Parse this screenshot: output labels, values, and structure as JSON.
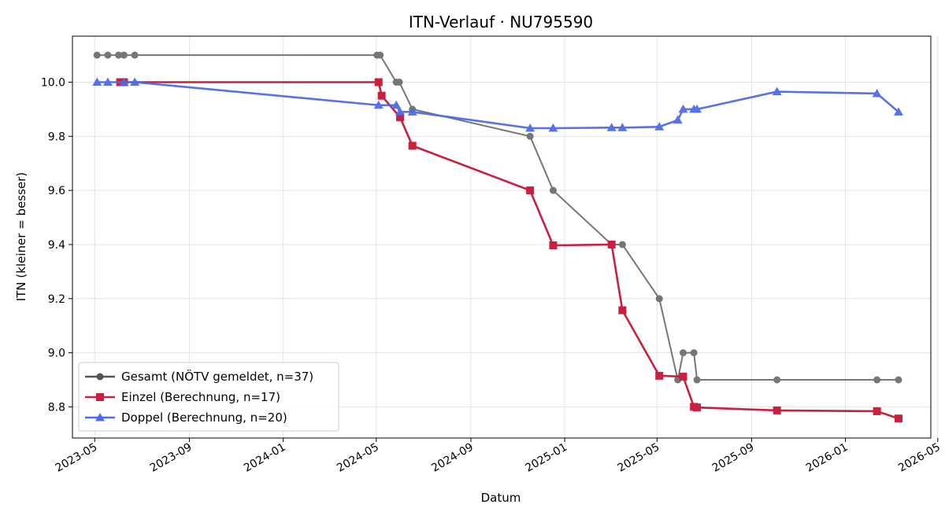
{
  "chart_data": {
    "type": "line",
    "title": "ITN-Verlauf · NU795590",
    "xlabel": "Datum",
    "ylabel": "ITN  (kleiner = besser)",
    "x_type": "date",
    "xlim": [
      "2023-04-02",
      "2026-04-22"
    ],
    "ylim": [
      8.685,
      10.17
    ],
    "xticks": [
      {
        "date": "2023-05-01",
        "label": "2023-05"
      },
      {
        "date": "2023-09-01",
        "label": "2023-09"
      },
      {
        "date": "2024-01-01",
        "label": "2024-01"
      },
      {
        "date": "2024-05-01",
        "label": "2024-05"
      },
      {
        "date": "2024-09-01",
        "label": "2024-09"
      },
      {
        "date": "2025-01-01",
        "label": "2025-01"
      },
      {
        "date": "2025-05-01",
        "label": "2025-05"
      },
      {
        "date": "2025-09-01",
        "label": "2025-09"
      },
      {
        "date": "2026-01-01",
        "label": "2026-01"
      },
      {
        "date": "2026-05-01",
        "label": "2026-05"
      }
    ],
    "yticks": [
      8.8,
      9.0,
      9.2,
      9.4,
      9.6,
      9.8,
      10.0
    ],
    "ytick_labels": [
      "8.8",
      "9.0",
      "9.2",
      "9.4",
      "9.6",
      "9.8",
      "10.0"
    ],
    "grid": true,
    "legend_position": "lower-left",
    "series": [
      {
        "name": "Gesamt (NÖTV gemeldet, n=37)",
        "color": "#555555",
        "marker": "circle",
        "points": [
          {
            "x": "2023-05-04",
            "y": 10.1
          },
          {
            "x": "2023-05-18",
            "y": 10.1
          },
          {
            "x": "2023-06-01",
            "y": 10.1
          },
          {
            "x": "2023-06-08",
            "y": 10.1
          },
          {
            "x": "2023-06-22",
            "y": 10.1
          },
          {
            "x": "2024-05-02",
            "y": 10.1
          },
          {
            "x": "2024-05-06",
            "y": 10.1
          },
          {
            "x": "2024-05-27",
            "y": 10.0
          },
          {
            "x": "2024-05-31",
            "y": 10.0
          },
          {
            "x": "2024-06-17",
            "y": 9.9
          },
          {
            "x": "2024-11-17",
            "y": 9.8
          },
          {
            "x": "2024-12-17",
            "y": 9.6
          },
          {
            "x": "2025-03-03",
            "y": 9.4
          },
          {
            "x": "2025-03-17",
            "y": 9.4
          },
          {
            "x": "2025-05-04",
            "y": 9.2
          },
          {
            "x": "2025-05-28",
            "y": 8.9
          },
          {
            "x": "2025-06-04",
            "y": 9.0
          },
          {
            "x": "2025-06-18",
            "y": 9.0
          },
          {
            "x": "2025-06-22",
            "y": 8.9
          },
          {
            "x": "2025-10-04",
            "y": 8.9
          },
          {
            "x": "2026-02-11",
            "y": 8.9
          },
          {
            "x": "2026-03-11",
            "y": 8.9
          }
        ]
      },
      {
        "name": "Einzel (Berechnung, n=17)",
        "color": "#c8203e",
        "marker": "square",
        "points": [
          {
            "x": "2023-06-03",
            "y": 10.0
          },
          {
            "x": "2023-06-08",
            "y": 10.0
          },
          {
            "x": "2024-05-04",
            "y": 10.0
          },
          {
            "x": "2024-05-08",
            "y": 9.95
          },
          {
            "x": "2024-06-01",
            "y": 9.87
          },
          {
            "x": "2024-06-17",
            "y": 9.765
          },
          {
            "x": "2024-11-17",
            "y": 9.6
          },
          {
            "x": "2024-12-17",
            "y": 9.397
          },
          {
            "x": "2025-03-03",
            "y": 9.4
          },
          {
            "x": "2025-03-17",
            "y": 9.157
          },
          {
            "x": "2025-05-04",
            "y": 8.915
          },
          {
            "x": "2025-06-04",
            "y": 8.912
          },
          {
            "x": "2025-06-18",
            "y": 8.8
          },
          {
            "x": "2025-06-22",
            "y": 8.798
          },
          {
            "x": "2025-10-04",
            "y": 8.787
          },
          {
            "x": "2026-02-11",
            "y": 8.784
          },
          {
            "x": "2026-03-11",
            "y": 8.757
          }
        ]
      },
      {
        "name": "Doppel (Berechnung, n=20)",
        "color": "#4f6ae6",
        "marker": "triangle",
        "points": [
          {
            "x": "2023-05-04",
            "y": 10.0
          },
          {
            "x": "2023-05-18",
            "y": 10.0
          },
          {
            "x": "2023-06-08",
            "y": 10.0
          },
          {
            "x": "2023-06-22",
            "y": 10.0
          },
          {
            "x": "2024-05-04",
            "y": 9.915
          },
          {
            "x": "2024-05-27",
            "y": 9.915
          },
          {
            "x": "2024-06-01",
            "y": 9.89
          },
          {
            "x": "2024-06-17",
            "y": 9.89
          },
          {
            "x": "2024-11-17",
            "y": 9.83
          },
          {
            "x": "2024-12-17",
            "y": 9.83
          },
          {
            "x": "2025-03-03",
            "y": 9.832
          },
          {
            "x": "2025-03-17",
            "y": 9.832
          },
          {
            "x": "2025-05-04",
            "y": 9.835
          },
          {
            "x": "2025-05-28",
            "y": 9.86
          },
          {
            "x": "2025-06-04",
            "y": 9.9
          },
          {
            "x": "2025-06-18",
            "y": 9.9
          },
          {
            "x": "2025-06-22",
            "y": 9.9
          },
          {
            "x": "2025-10-04",
            "y": 9.965
          },
          {
            "x": "2026-02-11",
            "y": 9.958
          },
          {
            "x": "2026-03-11",
            "y": 9.89
          }
        ]
      }
    ]
  }
}
